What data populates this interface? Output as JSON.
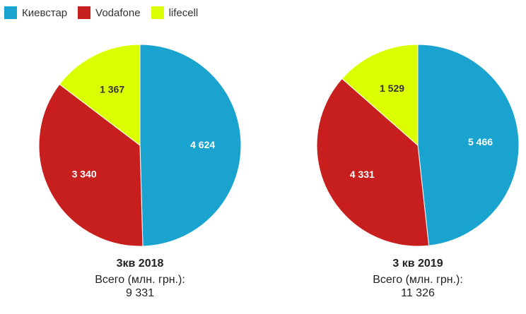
{
  "legend": [
    {
      "label": "Киевстар",
      "color": "#1ba3cf"
    },
    {
      "label": "Vodafone",
      "color": "#c71e1e"
    },
    {
      "label": "lifecell",
      "color": "#dcff00"
    }
  ],
  "chart_data": [
    {
      "type": "pie",
      "title": "3кв 2018",
      "subtitle": "Всего (млн. грн.):",
      "total": "9 331",
      "slices": [
        {
          "name": "Киевстар",
          "value": 4624,
          "label": "4 624",
          "color": "#1ba3cf",
          "label_color": "#ffffff"
        },
        {
          "name": "Vodafone",
          "value": 3340,
          "label": "3 340",
          "color": "#c71e1e",
          "label_color": "#ffffff"
        },
        {
          "name": "lifecell",
          "value": 1367,
          "label": "1 367",
          "color": "#dcff00",
          "label_color": "#333333"
        }
      ]
    },
    {
      "type": "pie",
      "title": "3 кв 2019",
      "subtitle": "Всего (млн. грн.):",
      "total": "11 326",
      "slices": [
        {
          "name": "Киевстар",
          "value": 5466,
          "label": "5 466",
          "color": "#1ba3cf",
          "label_color": "#ffffff"
        },
        {
          "name": "Vodafone",
          "value": 4331,
          "label": "4 331",
          "color": "#c71e1e",
          "label_color": "#ffffff"
        },
        {
          "name": "lifecell",
          "value": 1529,
          "label": "1 529",
          "color": "#dcff00",
          "label_color": "#333333"
        }
      ]
    }
  ]
}
